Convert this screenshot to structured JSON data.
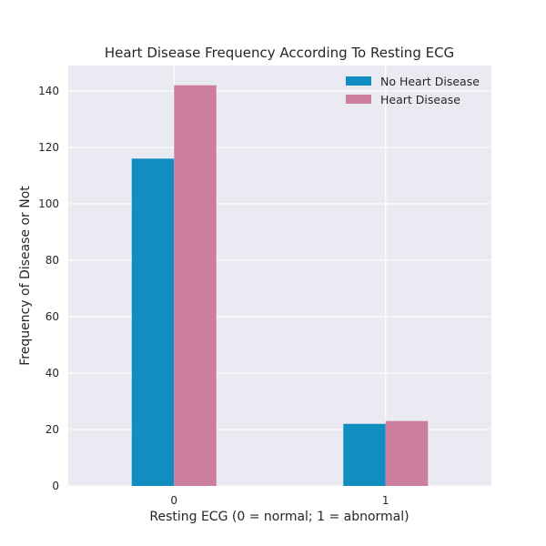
{
  "chart_data": {
    "type": "bar",
    "title": "Heart Disease Frequency According To Resting ECG",
    "xlabel": "Resting ECG (0 = normal; 1 = abnormal)",
    "ylabel": "Frequency of Disease or Not",
    "categories": [
      "0",
      "1"
    ],
    "series": [
      {
        "name": "No Heart Disease",
        "color": "#118dc0",
        "values": [
          116,
          22
        ]
      },
      {
        "name": "Heart Disease",
        "color": "#cc7f9d",
        "values": [
          142,
          23
        ]
      }
    ],
    "ylim": [
      0,
      149
    ],
    "yticks": [
      0,
      20,
      40,
      60,
      80,
      100,
      120,
      140
    ],
    "grid": true,
    "legend_position": "top-right",
    "background_color": "#eaeaf2",
    "grid_color": "#ffffff"
  }
}
